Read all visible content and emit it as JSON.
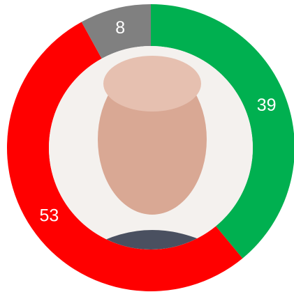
{
  "chart_data": {
    "type": "donut",
    "values": [
      39,
      53,
      8
    ],
    "colors": [
      "#00b050",
      "#ff0000",
      "#808080"
    ]
  }
}
